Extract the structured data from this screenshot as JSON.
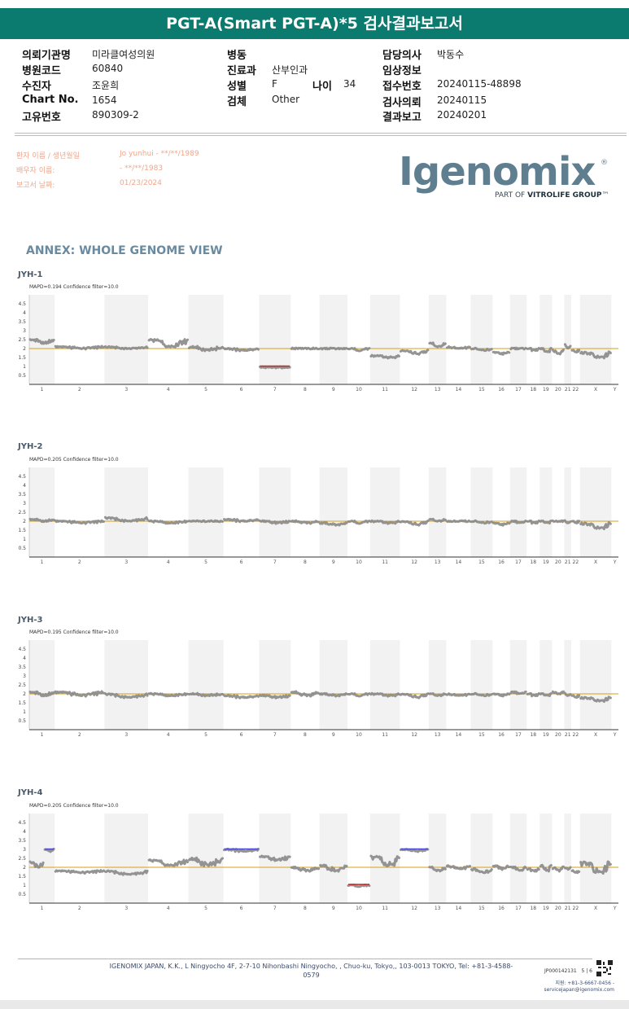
{
  "header": {
    "title": "PGT-A(Smart PGT-A)*5 검사결과보고서"
  },
  "info": {
    "institution_label": "의뢰기관명",
    "institution": "미라클여성의원",
    "hospital_code_label": "병원코드",
    "hospital_code": "60840",
    "recipient_label": "수진자",
    "recipient": "조윤희",
    "chart_label": "Chart No.",
    "chart": "1654",
    "unique_label": "고유번호",
    "unique": "890309-2",
    "ward_label": "병동",
    "ward": "",
    "dept_label": "진료과",
    "dept": "산부인과",
    "sex_label": "성별",
    "sex": "F",
    "age_label": "나이",
    "age": "34",
    "specimen_label": "검체",
    "specimen": "Other",
    "doctor_label": "담당의사",
    "doctor": "박동수",
    "clinical_label": "임상정보",
    "clinical": "",
    "receipt_label": "접수번호",
    "receipt": "20240115-48898",
    "request_label": "검사의뢰",
    "request": "20240115",
    "report_label": "결과보고",
    "report": "20240201"
  },
  "patient": {
    "name_label": "환자 이름 / 생년월일",
    "name_value": "Jo yunhui - **/**/1989",
    "spouse_label": "배우자 이름:",
    "spouse_value": "- **/**/1983",
    "report_date_label": "보고서 날짜:",
    "report_date_value": "01/23/2024"
  },
  "logo": {
    "word": "Igenomix",
    "reg": "®",
    "sub_prefix": "PART OF ",
    "sub_bold": "VITROLIFE GROUP",
    "sub_tm": "™"
  },
  "annex_title": "ANNEX: WHOLE GENOME VIEW",
  "colors": {
    "header": "#0b7a6f",
    "baseline": "#d4a017",
    "gain": "#4a4ad0",
    "loss": "#c03030",
    "points": "#888888",
    "shade": "#f2f2f2"
  },
  "chart_data": [
    {
      "type": "scatter",
      "title": "JYH-1",
      "subtitle": "MAPD=0.194 Confidence filter=10.0",
      "ylim": [
        0,
        5
      ],
      "yticks": [
        "4.5",
        "4",
        "3.5",
        "3",
        "2.5",
        "2",
        "1.5",
        "1",
        "0.5"
      ],
      "chromosomes": [
        "1",
        "2",
        "3",
        "4",
        "5",
        "6",
        "7",
        "8",
        "9",
        "10",
        "11",
        "12",
        "13",
        "14",
        "15",
        "16",
        "17",
        "18",
        "19",
        "20",
        "21",
        "22",
        "X",
        "Y"
      ],
      "baseline": 2,
      "segments": [
        {
          "chr": "1",
          "level": [
            2.3,
            2.5
          ]
        },
        {
          "chr": "2",
          "level": [
            2.0,
            2.1
          ]
        },
        {
          "chr": "3",
          "level": [
            2.0,
            2.1
          ]
        },
        {
          "chr": "4",
          "level": [
            2.1,
            2.5
          ]
        },
        {
          "chr": "5",
          "level": [
            1.9,
            2.1
          ]
        },
        {
          "chr": "6",
          "level": [
            1.9,
            2.0
          ]
        },
        {
          "chr": "7",
          "level": [
            0.95,
            0.95
          ],
          "call": "loss"
        },
        {
          "chr": "8",
          "level": [
            2.0,
            2.0
          ]
        },
        {
          "chr": "9",
          "level": [
            2.0,
            2.0
          ]
        },
        {
          "chr": "10",
          "level": [
            1.9,
            2.0
          ]
        },
        {
          "chr": "11",
          "level": [
            1.5,
            1.6
          ]
        },
        {
          "chr": "12",
          "level": [
            1.7,
            1.9
          ]
        },
        {
          "chr": "13",
          "level": [
            2.1,
            2.3
          ]
        },
        {
          "chr": "14",
          "level": [
            2.0,
            2.1
          ]
        },
        {
          "chr": "15",
          "level": [
            1.9,
            2.0
          ]
        },
        {
          "chr": "16",
          "level": [
            1.7,
            1.8
          ]
        },
        {
          "chr": "17",
          "level": [
            2.0,
            2.0
          ]
        },
        {
          "chr": "18",
          "level": [
            1.9,
            2.0
          ]
        },
        {
          "chr": "19",
          "level": [
            1.8,
            2.0
          ]
        },
        {
          "chr": "20",
          "level": [
            1.7,
            1.9
          ]
        },
        {
          "chr": "21",
          "level": [
            2.0,
            2.2
          ]
        },
        {
          "chr": "22",
          "level": [
            1.8,
            1.9
          ]
        },
        {
          "chr": "X",
          "level": [
            1.5,
            1.8
          ]
        },
        {
          "chr": "Y",
          "level": null
        }
      ]
    },
    {
      "type": "scatter",
      "title": "JYH-2",
      "subtitle": "MAPD=0.205 Confidence filter=10.0",
      "ylim": [
        0,
        5
      ],
      "yticks": [
        "4.5",
        "4",
        "3.5",
        "3",
        "2.5",
        "2",
        "1.5",
        "1",
        "0.5"
      ],
      "chromosomes": [
        "1",
        "2",
        "3",
        "4",
        "5",
        "6",
        "7",
        "8",
        "9",
        "10",
        "11",
        "12",
        "13",
        "14",
        "15",
        "16",
        "17",
        "18",
        "19",
        "20",
        "21",
        "22",
        "X",
        "Y"
      ],
      "baseline": 2,
      "segments": [
        {
          "chr": "1",
          "level": [
            2.0,
            2.1
          ]
        },
        {
          "chr": "2",
          "level": [
            1.9,
            2.0
          ]
        },
        {
          "chr": "3",
          "level": [
            2.0,
            2.2
          ]
        },
        {
          "chr": "4",
          "level": [
            1.9,
            2.0
          ]
        },
        {
          "chr": "5",
          "level": [
            2.0,
            2.0
          ]
        },
        {
          "chr": "6",
          "level": [
            2.0,
            2.1
          ]
        },
        {
          "chr": "7",
          "level": [
            1.9,
            2.0
          ]
        },
        {
          "chr": "8",
          "level": [
            1.9,
            2.0
          ]
        },
        {
          "chr": "9",
          "level": [
            1.8,
            1.9
          ]
        },
        {
          "chr": "10",
          "level": [
            1.9,
            2.0
          ]
        },
        {
          "chr": "11",
          "level": [
            1.9,
            2.0
          ]
        },
        {
          "chr": "12",
          "level": [
            1.8,
            2.0
          ]
        },
        {
          "chr": "13",
          "level": [
            2.0,
            2.1
          ]
        },
        {
          "chr": "14",
          "level": [
            2.0,
            2.0
          ]
        },
        {
          "chr": "15",
          "level": [
            1.9,
            2.0
          ]
        },
        {
          "chr": "16",
          "level": [
            1.8,
            1.9
          ]
        },
        {
          "chr": "17",
          "level": [
            1.9,
            2.0
          ]
        },
        {
          "chr": "18",
          "level": [
            1.9,
            2.0
          ]
        },
        {
          "chr": "19",
          "level": [
            1.9,
            2.0
          ]
        },
        {
          "chr": "20",
          "level": [
            2.0,
            2.0
          ]
        },
        {
          "chr": "21",
          "level": [
            1.9,
            2.0
          ]
        },
        {
          "chr": "22",
          "level": [
            1.9,
            2.0
          ]
        },
        {
          "chr": "X",
          "level": [
            1.6,
            1.9
          ]
        },
        {
          "chr": "Y",
          "level": null
        }
      ]
    },
    {
      "type": "scatter",
      "title": "JYH-3",
      "subtitle": "MAPD=0.195 Confidence filter=10.0",
      "ylim": [
        0,
        5
      ],
      "yticks": [
        "4.5",
        "4",
        "3.5",
        "3",
        "2.5",
        "2",
        "1.5",
        "1",
        "0.5"
      ],
      "chromosomes": [
        "1",
        "2",
        "3",
        "4",
        "5",
        "6",
        "7",
        "8",
        "9",
        "10",
        "11",
        "12",
        "13",
        "14",
        "15",
        "16",
        "17",
        "18",
        "19",
        "20",
        "21",
        "22",
        "X",
        "Y"
      ],
      "baseline": 2,
      "segments": [
        {
          "chr": "1",
          "level": [
            1.9,
            2.1
          ]
        },
        {
          "chr": "2",
          "level": [
            1.9,
            2.1
          ]
        },
        {
          "chr": "3",
          "level": [
            1.8,
            2.0
          ]
        },
        {
          "chr": "4",
          "level": [
            1.9,
            2.0
          ]
        },
        {
          "chr": "5",
          "level": [
            1.9,
            2.0
          ]
        },
        {
          "chr": "6",
          "level": [
            1.8,
            1.9
          ]
        },
        {
          "chr": "7",
          "level": [
            1.8,
            1.9
          ]
        },
        {
          "chr": "8",
          "level": [
            1.9,
            2.1
          ]
        },
        {
          "chr": "9",
          "level": [
            1.9,
            2.0
          ]
        },
        {
          "chr": "10",
          "level": [
            1.9,
            2.0
          ]
        },
        {
          "chr": "11",
          "level": [
            1.9,
            2.0
          ]
        },
        {
          "chr": "12",
          "level": [
            1.8,
            2.0
          ]
        },
        {
          "chr": "13",
          "level": [
            1.9,
            2.0
          ]
        },
        {
          "chr": "14",
          "level": [
            1.9,
            2.0
          ]
        },
        {
          "chr": "15",
          "level": [
            1.9,
            2.0
          ]
        },
        {
          "chr": "16",
          "level": [
            1.9,
            2.0
          ]
        },
        {
          "chr": "17",
          "level": [
            2.0,
            2.1
          ]
        },
        {
          "chr": "18",
          "level": [
            1.9,
            2.0
          ]
        },
        {
          "chr": "19",
          "level": [
            1.9,
            2.0
          ]
        },
        {
          "chr": "20",
          "level": [
            2.0,
            2.1
          ]
        },
        {
          "chr": "21",
          "level": [
            1.9,
            2.0
          ]
        },
        {
          "chr": "22",
          "level": [
            1.8,
            1.9
          ]
        },
        {
          "chr": "X",
          "level": [
            1.6,
            1.8
          ]
        },
        {
          "chr": "Y",
          "level": null
        }
      ]
    },
    {
      "type": "scatter",
      "title": "JYH-4",
      "subtitle": "MAPD=0.205 Confidence filter=10.0",
      "ylim": [
        0,
        5
      ],
      "yticks": [
        "4.5",
        "4",
        "3.5",
        "3",
        "2.5",
        "2",
        "1.5",
        "1",
        "0.5"
      ],
      "chromosomes": [
        "1",
        "2",
        "3",
        "4",
        "5",
        "6",
        "7",
        "8",
        "9",
        "10",
        "11",
        "12",
        "13",
        "14",
        "15",
        "16",
        "17",
        "18",
        "19",
        "20",
        "21",
        "22",
        "X",
        "Y"
      ],
      "baseline": 2,
      "segments": [
        {
          "chr": "1",
          "level": [
            2.0,
            2.3
          ]
        },
        {
          "chr": "1q",
          "level": [
            2.9,
            3.0
          ],
          "call": "gain"
        },
        {
          "chr": "2",
          "level": [
            1.7,
            1.8
          ]
        },
        {
          "chr": "3",
          "level": [
            1.6,
            1.8
          ]
        },
        {
          "chr": "4",
          "level": [
            2.1,
            2.4
          ]
        },
        {
          "chr": "5",
          "level": [
            2.1,
            2.5
          ]
        },
        {
          "chr": "6",
          "level": [
            2.9,
            3.0
          ],
          "call": "gain"
        },
        {
          "chr": "7",
          "level": [
            2.4,
            2.6
          ]
        },
        {
          "chr": "8",
          "level": [
            1.8,
            2.0
          ]
        },
        {
          "chr": "9",
          "level": [
            1.8,
            2.1
          ]
        },
        {
          "chr": "10",
          "level": [
            0.95,
            1.0
          ],
          "call": "loss"
        },
        {
          "chr": "11",
          "level": [
            2.1,
            2.6
          ]
        },
        {
          "chr": "12",
          "level": [
            2.9,
            3.0
          ],
          "call": "gain"
        },
        {
          "chr": "13",
          "level": [
            1.8,
            2.0
          ]
        },
        {
          "chr": "14",
          "level": [
            1.9,
            2.1
          ]
        },
        {
          "chr": "15",
          "level": [
            1.7,
            1.9
          ]
        },
        {
          "chr": "16",
          "level": [
            1.9,
            2.1
          ]
        },
        {
          "chr": "17",
          "level": [
            1.8,
            2.0
          ]
        },
        {
          "chr": "18",
          "level": [
            1.8,
            1.9
          ]
        },
        {
          "chr": "19",
          "level": [
            1.8,
            2.1
          ]
        },
        {
          "chr": "20",
          "level": [
            1.8,
            2.0
          ]
        },
        {
          "chr": "21",
          "level": [
            1.9,
            2.0
          ]
        },
        {
          "chr": "22",
          "level": [
            1.7,
            1.8
          ]
        },
        {
          "chr": "X",
          "level": [
            1.7,
            2.3
          ]
        },
        {
          "chr": "Y",
          "level": null
        }
      ]
    }
  ],
  "footer": {
    "address": "IGENOMIX JAPAN, K.K., L Ningyocho 4F, 2-7-10 Nihonbashi Ningyocho, , Chuo-ku, Tokyo,, 103-0013 TOKYO, Tel: +81-3-4588-0579",
    "code": "JP000142131",
    "page": "5 | 6",
    "contact_line1": "지원: +81-3-6667-0456 -",
    "contact_line2": "servicejapan@igenomix.com"
  }
}
